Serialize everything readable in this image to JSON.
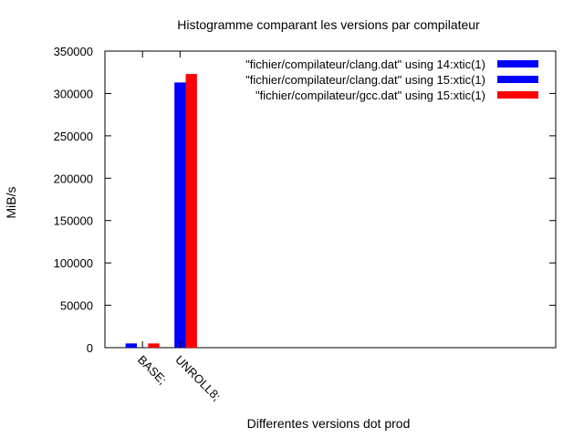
{
  "chart_data": {
    "type": "bar",
    "title": "Histogramme comparant les versions par compilateur",
    "xlabel": "Differentes versions dot prod",
    "ylabel": "MiB/s",
    "ylim": [
      0,
      350000
    ],
    "yticks": [
      0,
      50000,
      100000,
      150000,
      200000,
      250000,
      300000,
      350000
    ],
    "categories": [
      "BASE;",
      "UNROLL8;"
    ],
    "series": [
      {
        "name": "\"fichier/compilateur/clang.dat\"  using 14:xtic(1)",
        "color": "#0000ff",
        "values": [
          5000,
          0
        ]
      },
      {
        "name": "\"fichier/compilateur/clang.dat\"  using 15:xtic(1)",
        "color": "#0000ff",
        "values": [
          0,
          313000
        ]
      },
      {
        "name": "\"fichier/compilateur/gcc.dat\"  using 15:xtic(1)",
        "color": "#ff0000",
        "values": [
          5000,
          323000
        ]
      }
    ],
    "legend_position": "top-right",
    "grid": false
  }
}
